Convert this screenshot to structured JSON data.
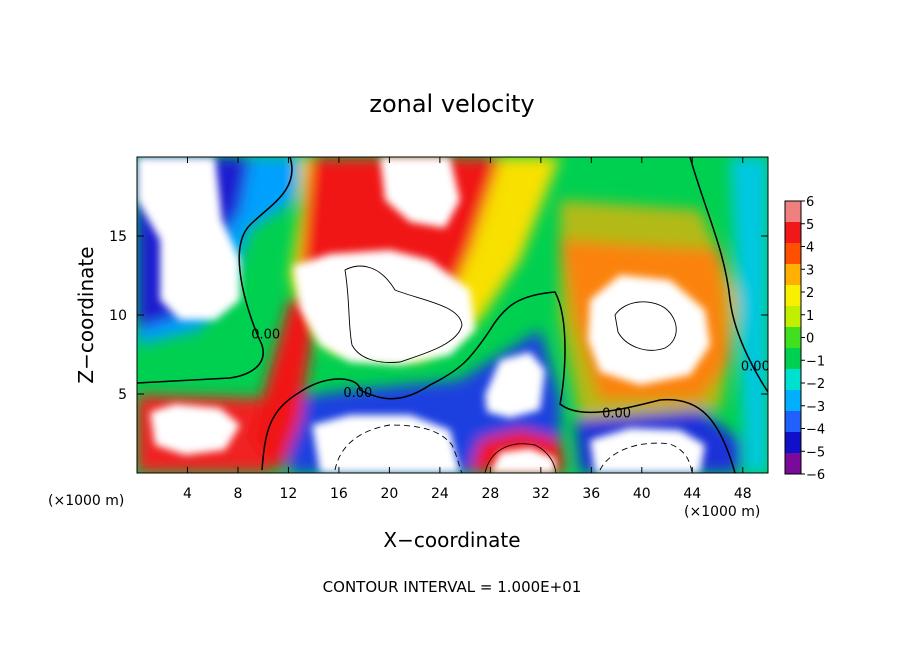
{
  "chart_data": {
    "type": "heatmap",
    "title": "zonal velocity",
    "xlabel": "X−coordinate",
    "ylabel": "Z−coordinate",
    "x_unit_left": "(×1000 m)",
    "x_unit_right": "(×1000 m)",
    "xlim": [
      0,
      50
    ],
    "ylim": [
      0,
      20
    ],
    "x_ticks": [
      4,
      8,
      12,
      16,
      20,
      24,
      28,
      32,
      36,
      40,
      44,
      48
    ],
    "y_ticks": [
      5,
      10,
      15
    ],
    "colorbar": {
      "min": -6,
      "max": 6,
      "tick_values": [
        6,
        5,
        4,
        3,
        2,
        1,
        0,
        -1,
        -2,
        -3,
        -4,
        -5,
        -6
      ],
      "tick_labels": [
        "6",
        "5",
        "4",
        "3",
        "2",
        "1",
        "0",
        "−1",
        "−2",
        "−3",
        "−4",
        "−5",
        "−6"
      ],
      "colors": [
        "#7a0a9a",
        "#1010c8",
        "#2060ff",
        "#00b0ff",
        "#00e0d0",
        "#00d050",
        "#40e020",
        "#c0f000",
        "#f8f000",
        "#ffb000",
        "#ff5000",
        "#f01818",
        "#f08080"
      ]
    },
    "contour_labels": [
      {
        "text": "0.00",
        "x": 10.2,
        "z": 8.5
      },
      {
        "text": "0.00",
        "x": 17.5,
        "z": 4.8
      },
      {
        "text": "0.00",
        "x": 38.0,
        "z": 3.5
      },
      {
        "text": "0.00",
        "x": 49.0,
        "z": 6.5
      }
    ],
    "footer": "CONTOUR INTERVAL = 1.000E+01"
  }
}
